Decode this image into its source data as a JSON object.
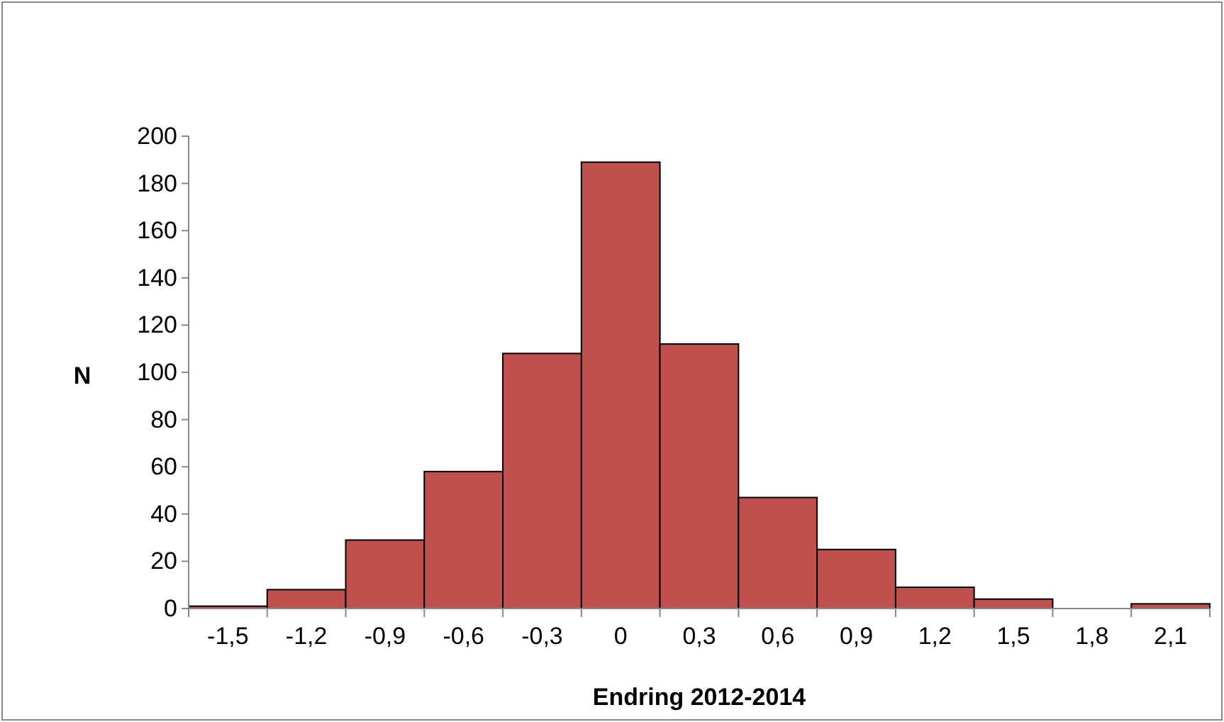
{
  "chart_data": {
    "type": "bar",
    "xlabel": "Endring 2012-2014",
    "ylabel": "N",
    "categories": [
      "-1,5",
      "-1,2",
      "-0,9",
      "-0,6",
      "-0,3",
      "0",
      "0,3",
      "0,6",
      "0,9",
      "1,2",
      "1,5",
      "1,8",
      "2,1"
    ],
    "values": [
      1,
      8,
      29,
      58,
      108,
      189,
      112,
      47,
      25,
      9,
      4,
      0,
      2
    ],
    "color": "#c0504d",
    "ylim": [
      0,
      200
    ],
    "yticks": [
      0,
      20,
      40,
      60,
      80,
      100,
      120,
      140,
      160,
      180,
      200
    ],
    "grid": false
  }
}
